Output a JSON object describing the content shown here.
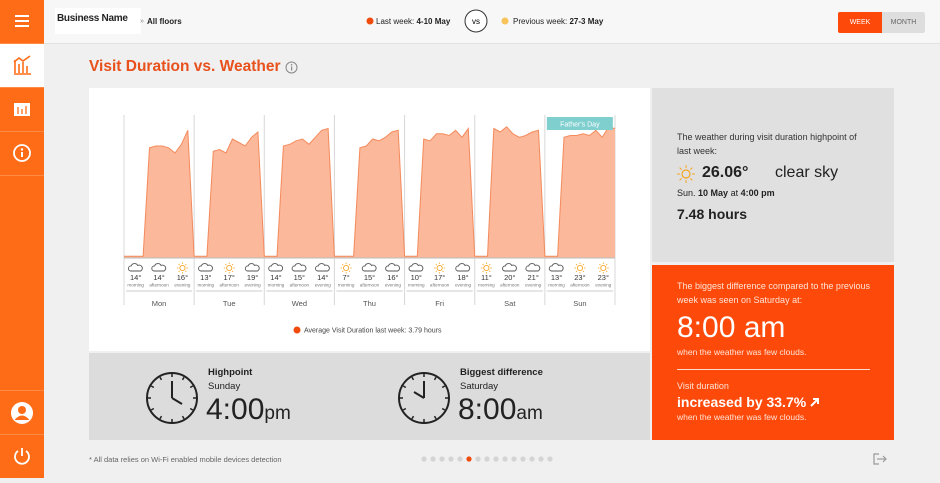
{
  "header": {
    "business_name": "Business Name",
    "floor": "All floors",
    "last_week_label": "Last week:",
    "last_week_range": "4-10 May",
    "vs": "vs",
    "previous_week_label": "Previous week:",
    "previous_week_range": "27-3 May",
    "buttons": [
      "WEEK",
      "MONTH"
    ]
  },
  "title": "Visit Duration vs. Weather",
  "chart_data": {
    "type": "area",
    "color": "#fbb89a",
    "line_color": "#f58a5c",
    "ylim": [
      0,
      8
    ],
    "annotation": "Father's Day",
    "periods": [
      "morning",
      "afternoon",
      "evening"
    ],
    "legend": "Average Visit Duration last week: 3.79 hours",
    "days": [
      {
        "label": "Mon",
        "temps": [
          "14°",
          "14°",
          "16°"
        ],
        "values": [
          0.1,
          0.1,
          0.1,
          0.1,
          6.3,
          6.4,
          6.4,
          6.3,
          6.0,
          6.5,
          7.3,
          0.1
        ]
      },
      {
        "label": "Tue",
        "temps": [
          "13°",
          "17°",
          "19°"
        ],
        "values": [
          0.1,
          0.1,
          0.1,
          6.1,
          6.2,
          6.0,
          6.8,
          6.6,
          6.4,
          6.9,
          7.2,
          0.1
        ]
      },
      {
        "label": "Wed",
        "temps": [
          "14°",
          "15°",
          "14°"
        ],
        "values": [
          0.1,
          0.1,
          0.1,
          6.4,
          6.5,
          6.7,
          6.8,
          6.5,
          6.9,
          7.3,
          7.4,
          0.1
        ]
      },
      {
        "label": "Thu",
        "temps": [
          "7°",
          "15°",
          "16°"
        ],
        "values": [
          0.1,
          0.1,
          0.1,
          0.1,
          6.3,
          6.4,
          6.8,
          6.7,
          6.9,
          7.2,
          7.3,
          0.1
        ]
      },
      {
        "label": "Fri",
        "temps": [
          "10°",
          "17°",
          "18°"
        ],
        "values": [
          0.1,
          0.1,
          0.1,
          6.8,
          6.7,
          7.1,
          7.1,
          7.0,
          7.3,
          6.9,
          7.4,
          0.1
        ]
      },
      {
        "label": "Sat",
        "temps": [
          "11°",
          "20°",
          "21°"
        ],
        "values": [
          0.1,
          0.1,
          0.1,
          7.4,
          7.2,
          7.5,
          7.1,
          6.9,
          7.0,
          7.2,
          7.3,
          0.1
        ]
      },
      {
        "label": "Sun",
        "temps": [
          "13°",
          "23°",
          "23°"
        ],
        "values": [
          0.1,
          0.1,
          0.1,
          6.9,
          7.0,
          7.0,
          7.1,
          7.0,
          7.3,
          6.9,
          7.48,
          7.4
        ]
      }
    ]
  },
  "weather_card": {
    "intro": "The weather during visit duration highpoint of last week:",
    "temperature": "26.06°",
    "condition": "clear sky",
    "day": "Sun.",
    "date": "10 May",
    "at": "at",
    "time": "4:00 pm",
    "duration": "7.48 hours"
  },
  "difference_card": {
    "intro": "The biggest difference compared to the previous week was seen on Saturday at:",
    "time": "8:00 am",
    "weather": "when the weather was few clouds.",
    "metric": "Visit duration",
    "change": "increased by 33.7%",
    "change_weather": "when the weather was few clouds."
  },
  "summary": {
    "highpoint": {
      "title": "Highpoint",
      "day": "Sunday",
      "time": "4:00",
      "suffix": "pm"
    },
    "difference": {
      "title": "Biggest difference",
      "day": "Saturday",
      "time": "8:00",
      "suffix": "am"
    }
  },
  "footer": "* All data relies on Wi-Fi enabled mobile devices detection"
}
